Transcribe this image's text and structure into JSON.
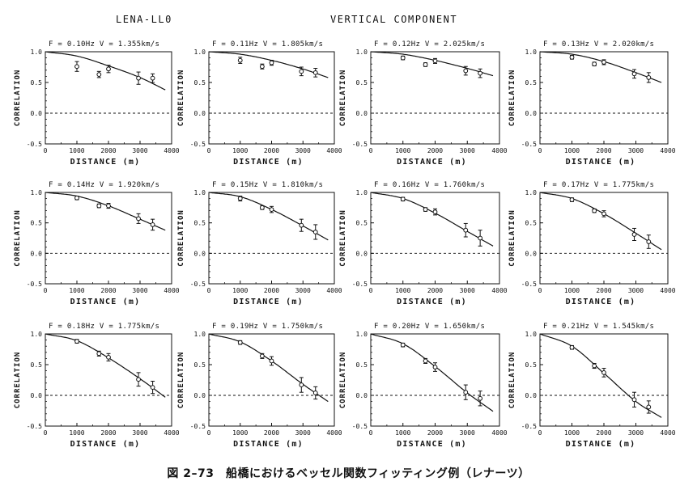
{
  "header": {
    "left": "LENA-LL0",
    "right": "VERTICAL COMPONENT"
  },
  "caption": "図 2–73　船橋におけるベッセル関数フィッティング例（レナーツ）",
  "axis_labels": {
    "x": "DISTANCE (m)",
    "y": "CORRELATION"
  },
  "colors": {
    "ink": "#111111",
    "background": "#ffffff"
  },
  "chart_data": [
    {
      "type": "scatter",
      "title": "F = 0.10Hz  V = 1.355km/s",
      "xlabel": "DISTANCE (m)",
      "ylabel": "CORRELATION",
      "xlim": [
        0,
        4000
      ],
      "ylim": [
        -0.5,
        1.0
      ],
      "xticks": [
        0,
        1000,
        2000,
        3000,
        4000
      ],
      "yticks": [
        -0.5,
        0.0,
        0.5,
        1.0
      ],
      "reference_line": 0,
      "points": [
        {
          "x": 1000,
          "y": 0.76,
          "err": 0.08
        },
        {
          "x": 1700,
          "y": 0.63,
          "err": 0.05
        },
        {
          "x": 2000,
          "y": 0.72,
          "err": 0.06
        },
        {
          "x": 2950,
          "y": 0.57,
          "err": 0.1
        },
        {
          "x": 3400,
          "y": 0.57,
          "err": 0.07
        }
      ],
      "fit_curve": [
        [
          0,
          1.0
        ],
        [
          1000,
          0.93
        ],
        [
          2000,
          0.77
        ],
        [
          3000,
          0.58
        ],
        [
          3800,
          0.38
        ]
      ]
    },
    {
      "type": "scatter",
      "title": "F = 0.11Hz  V = 1.805km/s",
      "xlabel": "DISTANCE (m)",
      "ylabel": "CORRELATION",
      "xlim": [
        0,
        4000
      ],
      "ylim": [
        -0.5,
        1.0
      ],
      "xticks": [
        0,
        1000,
        2000,
        3000,
        4000
      ],
      "yticks": [
        -0.5,
        0.0,
        0.5,
        1.0
      ],
      "reference_line": 0,
      "points": [
        {
          "x": 1000,
          "y": 0.86,
          "err": 0.05
        },
        {
          "x": 1700,
          "y": 0.76,
          "err": 0.04
        },
        {
          "x": 2000,
          "y": 0.82,
          "err": 0.04
        },
        {
          "x": 2950,
          "y": 0.68,
          "err": 0.07
        },
        {
          "x": 3400,
          "y": 0.66,
          "err": 0.07
        }
      ],
      "fit_curve": [
        [
          0,
          1.0
        ],
        [
          1000,
          0.96
        ],
        [
          2000,
          0.86
        ],
        [
          3000,
          0.72
        ],
        [
          3800,
          0.58
        ]
      ]
    },
    {
      "type": "scatter",
      "title": "F = 0.12Hz  V = 2.025km/s",
      "xlabel": "DISTANCE (m)",
      "ylabel": "CORRELATION",
      "xlim": [
        0,
        4000
      ],
      "ylim": [
        -0.5,
        1.0
      ],
      "xticks": [
        0,
        1000,
        2000,
        3000,
        4000
      ],
      "yticks": [
        -0.5,
        0.0,
        0.5,
        1.0
      ],
      "reference_line": 0,
      "points": [
        {
          "x": 1000,
          "y": 0.9,
          "err": 0.03
        },
        {
          "x": 1700,
          "y": 0.79,
          "err": 0.03
        },
        {
          "x": 2000,
          "y": 0.85,
          "err": 0.04
        },
        {
          "x": 2950,
          "y": 0.69,
          "err": 0.07
        },
        {
          "x": 3400,
          "y": 0.65,
          "err": 0.07
        }
      ],
      "fit_curve": [
        [
          0,
          1.0
        ],
        [
          1000,
          0.96
        ],
        [
          2000,
          0.86
        ],
        [
          3000,
          0.73
        ],
        [
          3800,
          0.61
        ]
      ]
    },
    {
      "type": "scatter",
      "title": "F = 0.13Hz  V = 2.020km/s",
      "xlabel": "DISTANCE (m)",
      "ylabel": "CORRELATION",
      "xlim": [
        0,
        4000
      ],
      "ylim": [
        -0.5,
        1.0
      ],
      "xticks": [
        0,
        1000,
        2000,
        3000,
        4000
      ],
      "yticks": [
        -0.5,
        0.0,
        0.5,
        1.0
      ],
      "reference_line": 0,
      "points": [
        {
          "x": 1000,
          "y": 0.91,
          "err": 0.03
        },
        {
          "x": 1700,
          "y": 0.8,
          "err": 0.03
        },
        {
          "x": 2000,
          "y": 0.83,
          "err": 0.04
        },
        {
          "x": 2950,
          "y": 0.64,
          "err": 0.07
        },
        {
          "x": 3400,
          "y": 0.58,
          "err": 0.08
        }
      ],
      "fit_curve": [
        [
          0,
          1.0
        ],
        [
          1000,
          0.96
        ],
        [
          2000,
          0.84
        ],
        [
          3000,
          0.66
        ],
        [
          3800,
          0.5
        ]
      ]
    },
    {
      "type": "scatter",
      "title": "F = 0.14Hz  V = 1.920km/s",
      "xlabel": "DISTANCE (m)",
      "ylabel": "CORRELATION",
      "xlim": [
        0,
        4000
      ],
      "ylim": [
        -0.5,
        1.0
      ],
      "xticks": [
        0,
        1000,
        2000,
        3000,
        4000
      ],
      "yticks": [
        -0.5,
        0.0,
        0.5,
        1.0
      ],
      "reference_line": 0,
      "points": [
        {
          "x": 1000,
          "y": 0.91,
          "err": 0.03
        },
        {
          "x": 1700,
          "y": 0.78,
          "err": 0.03
        },
        {
          "x": 2000,
          "y": 0.78,
          "err": 0.04
        },
        {
          "x": 2950,
          "y": 0.57,
          "err": 0.08
        },
        {
          "x": 3400,
          "y": 0.47,
          "err": 0.09
        }
      ],
      "fit_curve": [
        [
          0,
          1.0
        ],
        [
          1000,
          0.94
        ],
        [
          2000,
          0.78
        ],
        [
          3000,
          0.56
        ],
        [
          3800,
          0.38
        ]
      ]
    },
    {
      "type": "scatter",
      "title": "F = 0.15Hz  V = 1.810km/s",
      "xlabel": "DISTANCE (m)",
      "ylabel": "CORRELATION",
      "xlim": [
        0,
        4000
      ],
      "ylim": [
        -0.5,
        1.0
      ],
      "xticks": [
        0,
        1000,
        2000,
        3000,
        4000
      ],
      "yticks": [
        -0.5,
        0.0,
        0.5,
        1.0
      ],
      "reference_line": 0,
      "points": [
        {
          "x": 1000,
          "y": 0.9,
          "err": 0.04
        },
        {
          "x": 1700,
          "y": 0.75,
          "err": 0.03
        },
        {
          "x": 2000,
          "y": 0.72,
          "err": 0.05
        },
        {
          "x": 2950,
          "y": 0.46,
          "err": 0.1
        },
        {
          "x": 3400,
          "y": 0.35,
          "err": 0.12
        }
      ],
      "fit_curve": [
        [
          0,
          1.0
        ],
        [
          1000,
          0.93
        ],
        [
          2000,
          0.72
        ],
        [
          3000,
          0.45
        ],
        [
          3800,
          0.22
        ]
      ]
    },
    {
      "type": "scatter",
      "title": "F = 0.16Hz  V = 1.760km/s",
      "xlabel": "DISTANCE (m)",
      "ylabel": "CORRELATION",
      "xlim": [
        0,
        4000
      ],
      "ylim": [
        -0.5,
        1.0
      ],
      "xticks": [
        0,
        1000,
        2000,
        3000,
        4000
      ],
      "yticks": [
        -0.5,
        0.0,
        0.5,
        1.0
      ],
      "reference_line": 0,
      "points": [
        {
          "x": 1000,
          "y": 0.89,
          "err": 0.03
        },
        {
          "x": 1700,
          "y": 0.72,
          "err": 0.03
        },
        {
          "x": 2000,
          "y": 0.68,
          "err": 0.05
        },
        {
          "x": 2950,
          "y": 0.38,
          "err": 0.11
        },
        {
          "x": 3400,
          "y": 0.25,
          "err": 0.13
        }
      ],
      "fit_curve": [
        [
          0,
          1.0
        ],
        [
          1000,
          0.9
        ],
        [
          2000,
          0.66
        ],
        [
          3000,
          0.36
        ],
        [
          3800,
          0.12
        ]
      ]
    },
    {
      "type": "scatter",
      "title": "F = 0.17Hz  V = 1.775km/s",
      "xlabel": "DISTANCE (m)",
      "ylabel": "CORRELATION",
      "xlim": [
        0,
        4000
      ],
      "ylim": [
        -0.5,
        1.0
      ],
      "xticks": [
        0,
        1000,
        2000,
        3000,
        4000
      ],
      "yticks": [
        -0.5,
        0.0,
        0.5,
        1.0
      ],
      "reference_line": 0,
      "points": [
        {
          "x": 1000,
          "y": 0.88,
          "err": 0.03
        },
        {
          "x": 1700,
          "y": 0.7,
          "err": 0.03
        },
        {
          "x": 2000,
          "y": 0.65,
          "err": 0.05
        },
        {
          "x": 2950,
          "y": 0.31,
          "err": 0.1
        },
        {
          "x": 3400,
          "y": 0.19,
          "err": 0.11
        }
      ],
      "fit_curve": [
        [
          0,
          1.0
        ],
        [
          1000,
          0.9
        ],
        [
          2000,
          0.65
        ],
        [
          3000,
          0.33
        ],
        [
          3800,
          0.06
        ]
      ]
    },
    {
      "type": "scatter",
      "title": "F = 0.18Hz  V = 1.775km/s",
      "xlabel": "DISTANCE (m)",
      "ylabel": "CORRELATION",
      "xlim": [
        0,
        4000
      ],
      "ylim": [
        -0.5,
        1.0
      ],
      "xticks": [
        0,
        1000,
        2000,
        3000,
        4000
      ],
      "yticks": [
        -0.5,
        0.0,
        0.5,
        1.0
      ],
      "reference_line": 0,
      "points": [
        {
          "x": 1000,
          "y": 0.88,
          "err": 0.03
        },
        {
          "x": 1700,
          "y": 0.68,
          "err": 0.04
        },
        {
          "x": 2000,
          "y": 0.62,
          "err": 0.06
        },
        {
          "x": 2950,
          "y": 0.26,
          "err": 0.11
        },
        {
          "x": 3400,
          "y": 0.13,
          "err": 0.1
        }
      ],
      "fit_curve": [
        [
          0,
          1.0
        ],
        [
          1000,
          0.89
        ],
        [
          2000,
          0.61
        ],
        [
          3000,
          0.27
        ],
        [
          3800,
          -0.03
        ]
      ]
    },
    {
      "type": "scatter",
      "title": "F = 0.19Hz  V = 1.750km/s",
      "xlabel": "DISTANCE (m)",
      "ylabel": "CORRELATION",
      "xlim": [
        0,
        4000
      ],
      "ylim": [
        -0.5,
        1.0
      ],
      "xticks": [
        0,
        1000,
        2000,
        3000,
        4000
      ],
      "yticks": [
        -0.5,
        0.0,
        0.5,
        1.0
      ],
      "reference_line": 0,
      "points": [
        {
          "x": 1000,
          "y": 0.86,
          "err": 0.03
        },
        {
          "x": 1700,
          "y": 0.64,
          "err": 0.04
        },
        {
          "x": 2000,
          "y": 0.56,
          "err": 0.07
        },
        {
          "x": 2950,
          "y": 0.17,
          "err": 0.12
        },
        {
          "x": 3400,
          "y": 0.04,
          "err": 0.1
        }
      ],
      "fit_curve": [
        [
          0,
          1.0
        ],
        [
          1000,
          0.87
        ],
        [
          2000,
          0.56
        ],
        [
          3000,
          0.18
        ],
        [
          3800,
          -0.1
        ]
      ]
    },
    {
      "type": "scatter",
      "title": "F = 0.20Hz  V = 1.650km/s",
      "xlabel": "DISTANCE (m)",
      "ylabel": "CORRELATION",
      "xlim": [
        0,
        4000
      ],
      "ylim": [
        -0.5,
        1.0
      ],
      "xticks": [
        0,
        1000,
        2000,
        3000,
        4000
      ],
      "yticks": [
        -0.5,
        0.0,
        0.5,
        1.0
      ],
      "reference_line": 0,
      "points": [
        {
          "x": 1000,
          "y": 0.82,
          "err": 0.03
        },
        {
          "x": 1700,
          "y": 0.56,
          "err": 0.04
        },
        {
          "x": 2000,
          "y": 0.46,
          "err": 0.07
        },
        {
          "x": 2950,
          "y": 0.05,
          "err": 0.12
        },
        {
          "x": 3400,
          "y": -0.05,
          "err": 0.12
        }
      ],
      "fit_curve": [
        [
          0,
          1.0
        ],
        [
          1000,
          0.84
        ],
        [
          2000,
          0.47
        ],
        [
          3000,
          0.04
        ],
        [
          3800,
          -0.26
        ]
      ]
    },
    {
      "type": "scatter",
      "title": "F = 0.21Hz  V = 1.545km/s",
      "xlabel": "DISTANCE (m)",
      "ylabel": "CORRELATION",
      "xlim": [
        0,
        4000
      ],
      "ylim": [
        -0.5,
        1.0
      ],
      "xticks": [
        0,
        1000,
        2000,
        3000,
        4000
      ],
      "yticks": [
        -0.5,
        0.0,
        0.5,
        1.0
      ],
      "reference_line": 0,
      "points": [
        {
          "x": 1000,
          "y": 0.78,
          "err": 0.03
        },
        {
          "x": 1700,
          "y": 0.48,
          "err": 0.04
        },
        {
          "x": 2000,
          "y": 0.37,
          "err": 0.07
        },
        {
          "x": 2950,
          "y": -0.07,
          "err": 0.12
        },
        {
          "x": 3400,
          "y": -0.19,
          "err": 0.1
        }
      ],
      "fit_curve": [
        [
          0,
          1.0
        ],
        [
          1000,
          0.8
        ],
        [
          2000,
          0.36
        ],
        [
          3000,
          -0.1
        ],
        [
          3800,
          -0.36
        ]
      ]
    }
  ]
}
